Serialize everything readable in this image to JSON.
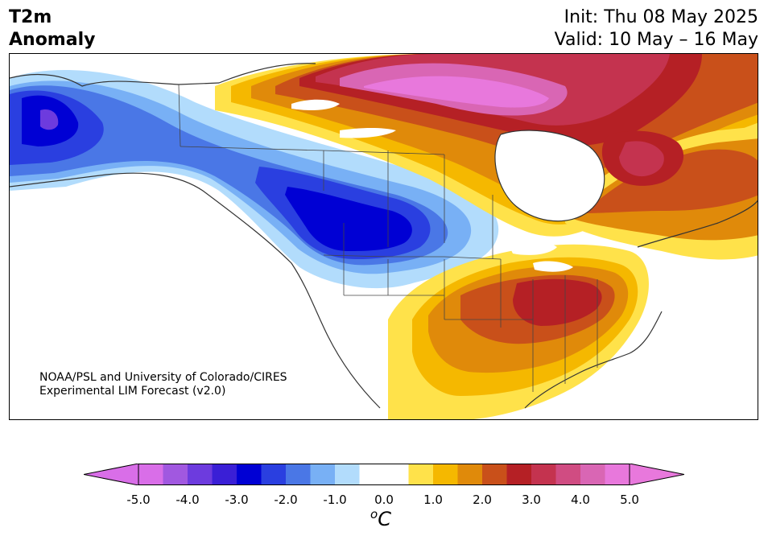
{
  "header": {
    "title_line1": "T2m",
    "title_line2": "Anomaly",
    "init_label": "Init: Thu 08 May 2025",
    "valid_label": "Valid: 10 May – 16 May"
  },
  "credits": {
    "line1": "NOAA/PSL and University of Colorado/CIRES",
    "line2": "Experimental LIM Forecast (v2.0)"
  },
  "colorbar": {
    "unit_base": "C",
    "unit_sup": "o",
    "ticks": [
      "-5.0",
      "-4.0",
      "-3.0",
      "-2.0",
      "-1.0",
      "0.0",
      "1.0",
      "2.0",
      "3.0",
      "4.0",
      "5.0"
    ],
    "range": [
      -5.0,
      5.0
    ],
    "colors": [
      "#d96ee8",
      "#a158e0",
      "#6d3bde",
      "#3a1fd6",
      "#0000d4",
      "#2a3fe0",
      "#4a77e6",
      "#78b0f5",
      "#b2dcfc",
      "#ffffff",
      "#ffffff",
      "#ffe24a",
      "#f5b800",
      "#e08a0a",
      "#c9501a",
      "#b52025",
      "#c4334f",
      "#d04c82",
      "#d966b4",
      "#e878dc"
    ],
    "under_color": "#d96ee8",
    "over_color": "#e878dc"
  }
}
